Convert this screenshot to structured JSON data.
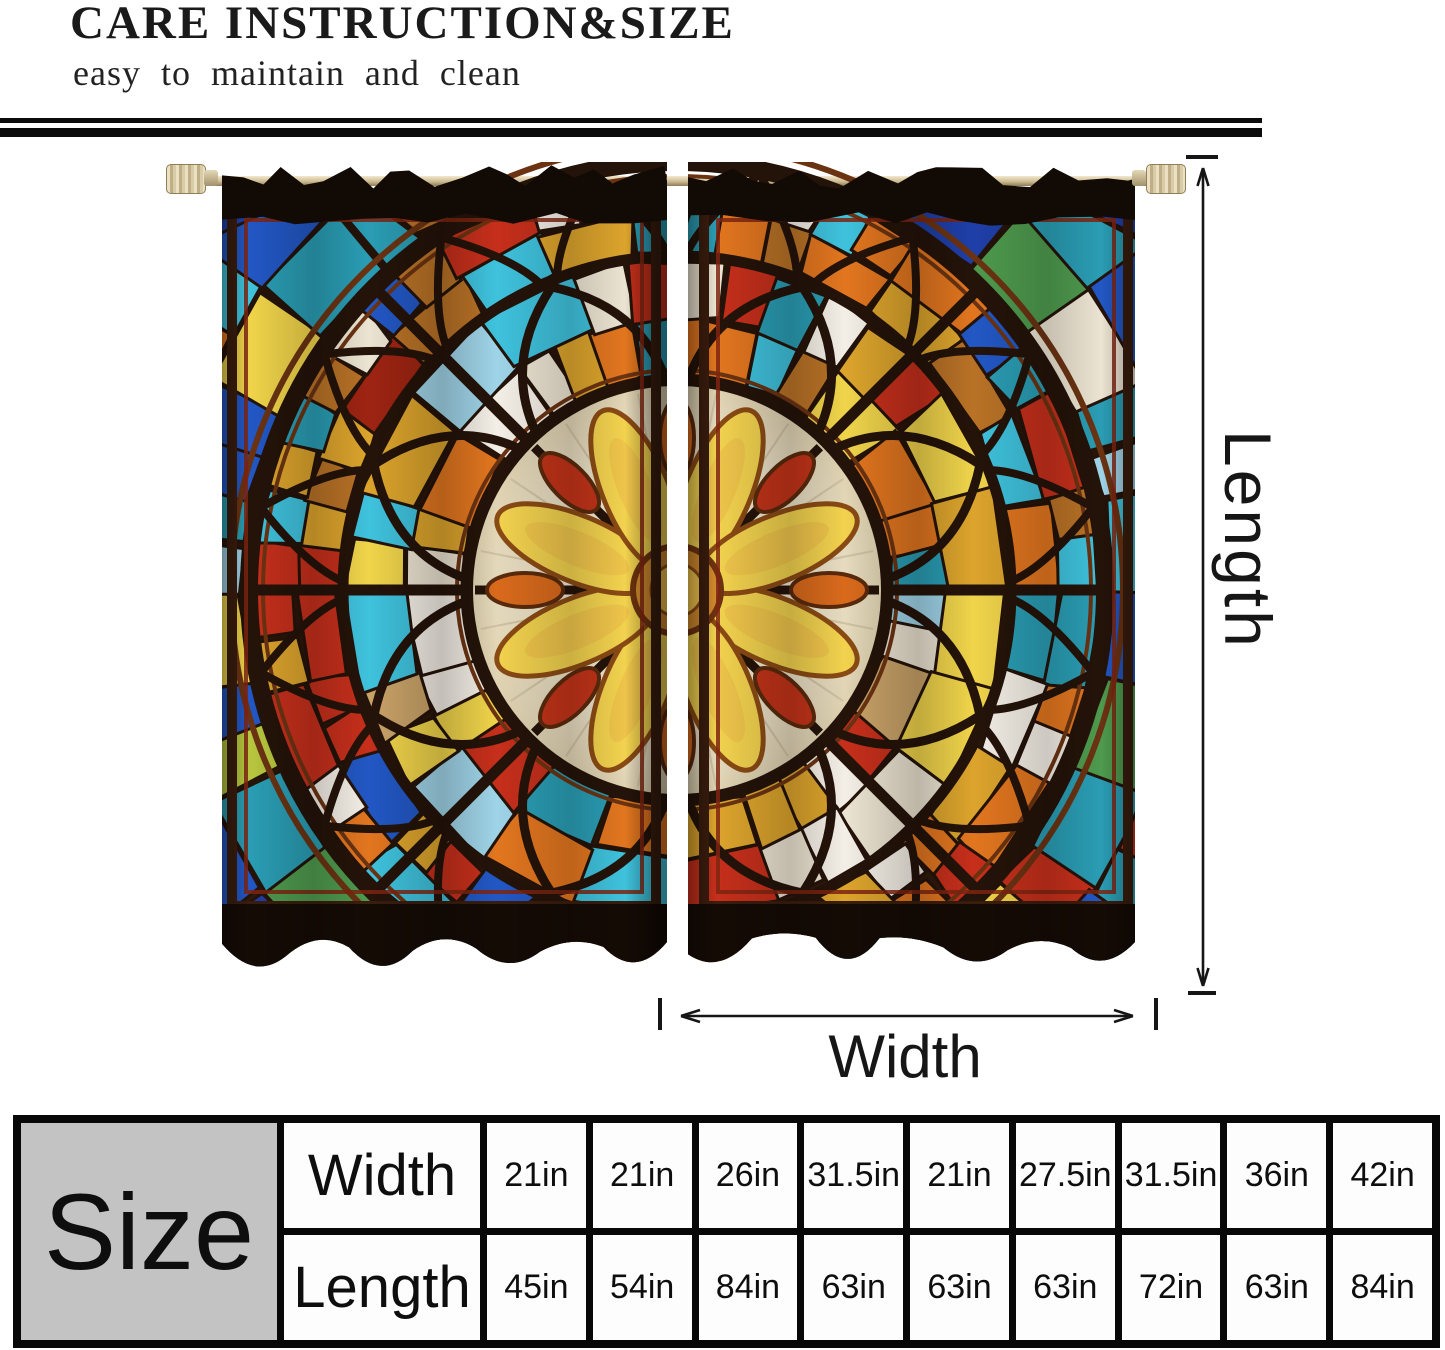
{
  "header": {
    "title": "CARE INSTRUCTION&SIZE",
    "subtitle": "easy to maintain and clean"
  },
  "diagram": {
    "length_label": "Length",
    "width_label": "Width"
  },
  "size_table": {
    "corner_label": "Size",
    "rows": [
      {
        "label": "Width",
        "values": [
          "21in",
          "21in",
          "26in",
          "31.5in",
          "21in",
          "27.5in",
          "31.5in",
          "36in",
          "42in"
        ]
      },
      {
        "label": "Length",
        "values": [
          "45in",
          "54in",
          "84in",
          "63in",
          "63in",
          "63in",
          "72in",
          "63in",
          "84in"
        ]
      }
    ]
  },
  "artwork": {
    "description": "two rod-pocket curtain panels printed with a stained-glass rose window",
    "palette": {
      "lead": "#241309",
      "frame": "#3a1d0d",
      "frame_accent": "#7e2410",
      "ruffle": "#120a05",
      "hem": "#150b05",
      "bg_top": "#241208",
      "bg_bottom": "#321a0b",
      "cream_light": "#f8f3e6",
      "cream": "#efe6cf",
      "cream_deep": "#e0d3b2",
      "inner_line": "#cfc1a2",
      "ring_accent": "#6b3312",
      "rod": "#cdbb92",
      "arrow": "#161616",
      "ring_inner": [
        "#ece4d2",
        "#f4efe6",
        "#dca42c",
        "#b97226",
        "#f0d44a",
        "#3fc2dd",
        "#9fd4e8",
        "#c62f1b",
        "#e2761f",
        "#caa368",
        "#2a9db4",
        "#ece4d2",
        "#dca42c",
        "#f0d44a"
      ],
      "ring_mid": [
        "#c62f1b",
        "#e2761f",
        "#dca42c",
        "#f0d44a",
        "#2257c4",
        "#3fc2dd",
        "#ece4d2",
        "#b97226",
        "#9e2412",
        "#2a9db4",
        "#f4efe6",
        "#e2761f",
        "#dca42c",
        "#c62f1b"
      ],
      "ring_outer": [
        "#2257c4",
        "#1f3fa8",
        "#3fc2dd",
        "#2a9db4",
        "#9fd4e8",
        "#2257c4",
        "#c62f1b",
        "#e2761f",
        "#f0d44a",
        "#4e9a4e",
        "#b7c63e",
        "#ece4d2",
        "#b97226",
        "#3fc2dd",
        "#1f3fa8",
        "#2a9db4"
      ],
      "petal_fill": "#f2d24e",
      "petal_inner": "#eec44a",
      "petal_stroke": "#8a4a14",
      "drop_a": "#d96a1c",
      "drop_b": "#c23318",
      "drop_stroke": "#5a2a0c",
      "center_outer": "#d28a2c",
      "center_mid": "#efc34a",
      "center_core": "#f7e08a",
      "center_stroke": "#6e3310"
    }
  }
}
